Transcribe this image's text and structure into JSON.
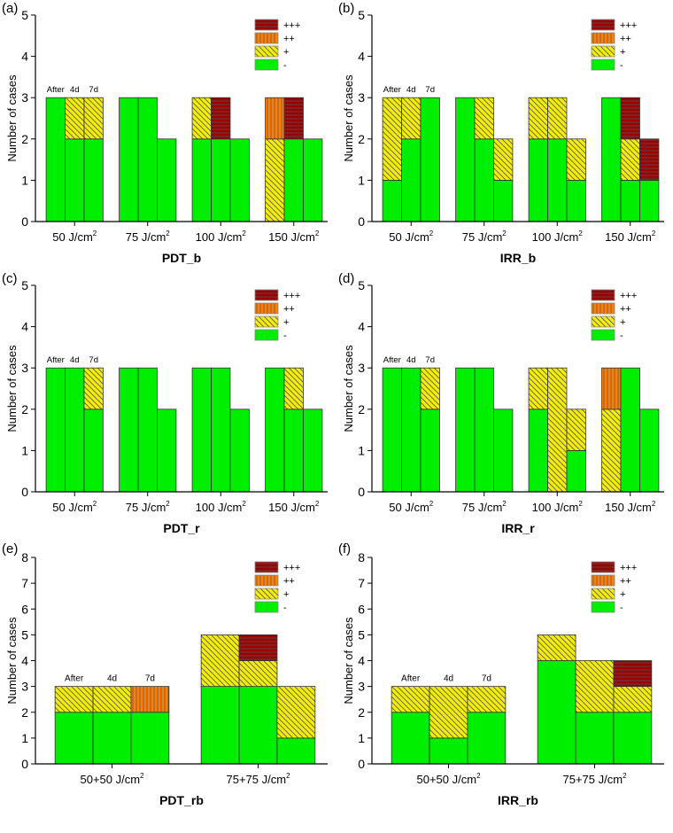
{
  "colors": {
    "-": "#00ee00",
    "+": "#f4ee00",
    "++": "#ff8000",
    "+++": "#9a0000",
    "hatch": "#555555",
    "edge": "#333333"
  },
  "legend": [
    "+++",
    "++",
    "+",
    "-"
  ],
  "chart_data": [
    {
      "panel_label": "(a)",
      "type": "bar",
      "stacked": true,
      "title": "PDT_b",
      "ylabel": "Number of cases",
      "ylim": [
        0,
        5
      ],
      "yticks": [
        "0",
        "1",
        "2",
        "3",
        "4",
        "5"
      ],
      "categories": [
        "50 J/cm²",
        "75 J/cm²",
        "100 J/cm²",
        "150 J/cm²"
      ],
      "sublabels": [
        "After",
        "4d",
        "7d"
      ],
      "stack_order": [
        "-",
        "+",
        "++",
        "+++"
      ],
      "bars": [
        [
          [
            3,
            0,
            0,
            0
          ],
          [
            2,
            1,
            0,
            0
          ],
          [
            2,
            1,
            0,
            0
          ]
        ],
        [
          [
            3,
            0,
            0,
            0
          ],
          [
            3,
            0,
            0,
            0
          ],
          [
            2,
            0,
            0,
            0
          ]
        ],
        [
          [
            2,
            1,
            0,
            0
          ],
          [
            2,
            0,
            0,
            1
          ],
          [
            2,
            0,
            0,
            0
          ]
        ],
        [
          [
            0,
            2,
            1,
            0
          ],
          [
            2,
            0,
            0,
            1
          ],
          [
            2,
            0,
            0,
            0
          ]
        ]
      ],
      "legend_placement": "top-right"
    },
    {
      "panel_label": "(b)",
      "type": "bar",
      "stacked": true,
      "title": "IRR_b",
      "ylabel": "Number of cases",
      "ylim": [
        0,
        5
      ],
      "yticks": [
        "0",
        "1",
        "2",
        "3",
        "4",
        "5"
      ],
      "categories": [
        "50 J/cm²",
        "75 J/cm²",
        "100 J/cm²",
        "150 J/cm²"
      ],
      "sublabels": [
        "After",
        "4d",
        "7d"
      ],
      "stack_order": [
        "-",
        "+",
        "++",
        "+++"
      ],
      "bars": [
        [
          [
            1,
            2,
            0,
            0
          ],
          [
            2,
            1,
            0,
            0
          ],
          [
            3,
            0,
            0,
            0
          ]
        ],
        [
          [
            3,
            0,
            0,
            0
          ],
          [
            2,
            1,
            0,
            0
          ],
          [
            1,
            1,
            0,
            0
          ]
        ],
        [
          [
            2,
            1,
            0,
            0
          ],
          [
            2,
            1,
            0,
            0
          ],
          [
            1,
            1,
            0,
            0
          ]
        ],
        [
          [
            3,
            0,
            0,
            0
          ],
          [
            1,
            1,
            0,
            1
          ],
          [
            1,
            0,
            0,
            1
          ]
        ]
      ],
      "legend_placement": "top-right"
    },
    {
      "panel_label": "(c)",
      "type": "bar",
      "stacked": true,
      "title": "PDT_r",
      "ylabel": "Number of cases",
      "ylim": [
        0,
        5
      ],
      "yticks": [
        "0",
        "1",
        "2",
        "3",
        "4",
        "5"
      ],
      "categories": [
        "50 J/cm²",
        "75 J/cm²",
        "100 J/cm²",
        "150 J/cm²"
      ],
      "sublabels": [
        "After",
        "4d",
        "7d"
      ],
      "stack_order": [
        "-",
        "+",
        "++",
        "+++"
      ],
      "bars": [
        [
          [
            3,
            0,
            0,
            0
          ],
          [
            3,
            0,
            0,
            0
          ],
          [
            2,
            1,
            0,
            0
          ]
        ],
        [
          [
            3,
            0,
            0,
            0
          ],
          [
            3,
            0,
            0,
            0
          ],
          [
            2,
            0,
            0,
            0
          ]
        ],
        [
          [
            3,
            0,
            0,
            0
          ],
          [
            3,
            0,
            0,
            0
          ],
          [
            2,
            0,
            0,
            0
          ]
        ],
        [
          [
            3,
            0,
            0,
            0
          ],
          [
            2,
            1,
            0,
            0
          ],
          [
            2,
            0,
            0,
            0
          ]
        ]
      ],
      "legend_placement": "top-right"
    },
    {
      "panel_label": "(d)",
      "type": "bar",
      "stacked": true,
      "title": "IRR_r",
      "ylabel": "Number of cases",
      "ylim": [
        0,
        5
      ],
      "yticks": [
        "0",
        "1",
        "2",
        "3",
        "4",
        "5"
      ],
      "categories": [
        "50 J/cm²",
        "75 J/cm²",
        "100 J/cm²",
        "150 J/cm²"
      ],
      "sublabels": [
        "After",
        "4d",
        "7d"
      ],
      "stack_order": [
        "-",
        "+",
        "++",
        "+++"
      ],
      "bars": [
        [
          [
            3,
            0,
            0,
            0
          ],
          [
            3,
            0,
            0,
            0
          ],
          [
            2,
            1,
            0,
            0
          ]
        ],
        [
          [
            3,
            0,
            0,
            0
          ],
          [
            3,
            0,
            0,
            0
          ],
          [
            2,
            0,
            0,
            0
          ]
        ],
        [
          [
            2,
            1,
            0,
            0
          ],
          [
            0,
            3,
            0,
            0
          ],
          [
            1,
            1,
            0,
            0
          ]
        ],
        [
          [
            0,
            2,
            1,
            0
          ],
          [
            3,
            0,
            0,
            0
          ],
          [
            2,
            0,
            0,
            0
          ]
        ]
      ],
      "legend_placement": "top-right"
    },
    {
      "panel_label": "(e)",
      "type": "bar",
      "stacked": true,
      "title": "PDT_rb",
      "ylabel": "Number of cases",
      "ylim": [
        0,
        8
      ],
      "yticks": [
        "0",
        "1",
        "2",
        "3",
        "4",
        "5",
        "6",
        "7",
        "8"
      ],
      "categories": [
        "50+50 J/cm²",
        "75+75 J/cm²"
      ],
      "sublabels": [
        "After",
        "4d",
        "7d"
      ],
      "stack_order": [
        "-",
        "+",
        "++",
        "+++"
      ],
      "bars": [
        [
          [
            2,
            1,
            0,
            0
          ],
          [
            2,
            1,
            0,
            0
          ],
          [
            2,
            0,
            1,
            0
          ]
        ],
        [
          [
            3,
            2,
            0,
            0
          ],
          [
            3,
            1,
            0,
            1
          ],
          [
            1,
            2,
            0,
            0
          ]
        ]
      ],
      "legend_placement": "top-right"
    },
    {
      "panel_label": "(f)",
      "type": "bar",
      "stacked": true,
      "title": "IRR_rb",
      "ylabel": "Number of cases",
      "ylim": [
        0,
        8
      ],
      "yticks": [
        "0",
        "1",
        "2",
        "3",
        "4",
        "5",
        "6",
        "7",
        "8"
      ],
      "categories": [
        "50+50 J/cm²",
        "75+75 J/cm²"
      ],
      "sublabels": [
        "After",
        "4d",
        "7d"
      ],
      "stack_order": [
        "-",
        "+",
        "++",
        "+++"
      ],
      "bars": [
        [
          [
            2,
            1,
            0,
            0
          ],
          [
            1,
            2,
            0,
            0
          ],
          [
            2,
            1,
            0,
            0
          ]
        ],
        [
          [
            4,
            1,
            0,
            0
          ],
          [
            2,
            2,
            0,
            0
          ],
          [
            2,
            1,
            0,
            1
          ]
        ]
      ],
      "legend_placement": "top-right"
    }
  ]
}
